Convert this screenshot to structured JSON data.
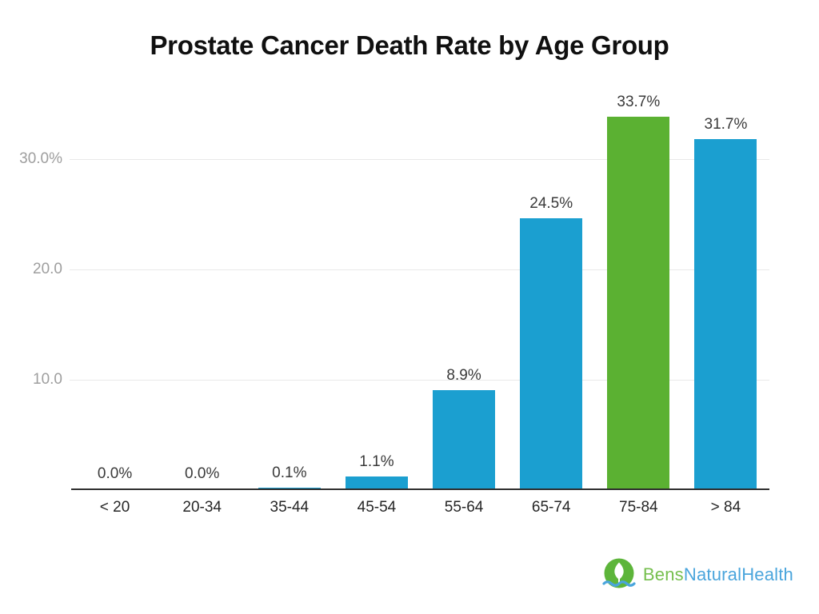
{
  "chart_data": {
    "type": "bar",
    "title": "Prostate Cancer Death Rate by Age Group",
    "categories": [
      "< 20",
      "20-34",
      "35-44",
      "45-54",
      "55-64",
      "65-74",
      "75-84",
      "> 84"
    ],
    "values": [
      0.0,
      0.0,
      0.1,
      1.1,
      8.9,
      24.5,
      33.7,
      31.7
    ],
    "value_labels": [
      "0.0%",
      "0.0%",
      "0.1%",
      "1.1%",
      "8.9%",
      "24.5%",
      "33.7%",
      "31.7%"
    ],
    "xlabel": "",
    "ylabel": "",
    "ylim": [
      0,
      34.3
    ],
    "yticks": [
      {
        "value": 10,
        "label": "10.0"
      },
      {
        "value": 20,
        "label": "20.0"
      },
      {
        "value": 30,
        "label": "30.0%"
      }
    ],
    "grid": true,
    "legend": "none",
    "highlight_index": 6,
    "colors": {
      "bar": "#1b9fd0",
      "highlight": "#5bb132",
      "gridline": "#e9e9e9",
      "axis_line": "#2f2f2f",
      "value_label": "#3a3a3a",
      "tick_label": "#262626",
      "ytick_label": "#9e9e9e"
    }
  },
  "footer": {
    "logo": {
      "brand_green": "Bens",
      "brand_blue": "NaturalHealth",
      "icon": "leaf-in-circle-with-wave-icon",
      "green_color": "#76bf4e",
      "blue_color": "#4aa5dc",
      "icon_circle_color": "#5db53a"
    }
  }
}
